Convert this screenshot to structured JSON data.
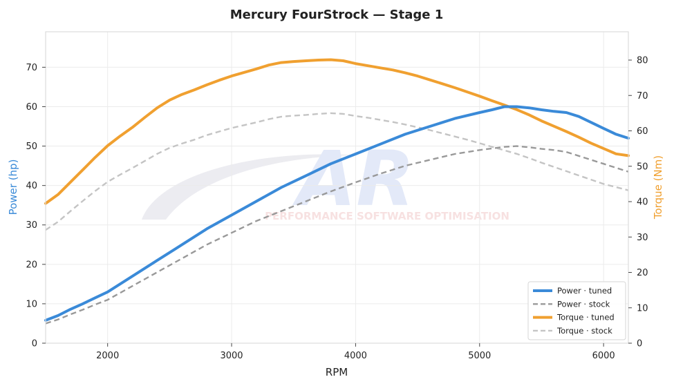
{
  "chart_data": {
    "type": "line",
    "title": "Mercury FourStrock — Stage 1",
    "xlabel": "RPM",
    "ylabel_left": "Power (hp)",
    "ylabel_right": "Torque (Nm)",
    "xlim": [
      1500,
      6200
    ],
    "ylim_left": [
      0,
      79
    ],
    "ylim_right": [
      0,
      88
    ],
    "x_ticks": [
      2000,
      3000,
      4000,
      5000,
      6000
    ],
    "y_ticks_left": [
      0,
      10,
      20,
      30,
      40,
      50,
      60,
      70
    ],
    "y_ticks_right": [
      0,
      10,
      20,
      30,
      40,
      50,
      60,
      70,
      80
    ],
    "grid": true,
    "legend_position": "bottom-right",
    "colors": {
      "power_tuned": "#3a8ad8",
      "power_stock": "#999999",
      "torque_tuned": "#f0a030",
      "torque_stock": "#c4c4c4",
      "left_axis_label": "#3a8ad8",
      "right_axis_label": "#f0a030"
    },
    "series": [
      {
        "name": "Power · tuned",
        "axis": "left",
        "style": "solid",
        "x": [
          1500,
          1600,
          1700,
          1800,
          1900,
          2000,
          2200,
          2400,
          2600,
          2800,
          3000,
          3200,
          3400,
          3600,
          3800,
          4000,
          4200,
          4400,
          4600,
          4800,
          5000,
          5100,
          5200,
          5300,
          5400,
          5500,
          5600,
          5700,
          5800,
          5900,
          6000,
          6100,
          6200
        ],
        "values": [
          5.8,
          7.0,
          8.6,
          10.0,
          11.5,
          13.0,
          17.0,
          21.0,
          25.0,
          29.0,
          32.5,
          36.0,
          39.5,
          42.5,
          45.5,
          48.0,
          50.5,
          53.0,
          55.0,
          57.0,
          58.5,
          59.2,
          60.0,
          60.0,
          59.7,
          59.2,
          58.8,
          58.5,
          57.5,
          56.0,
          54.5,
          53.0,
          52.0
        ]
      },
      {
        "name": "Power · stock",
        "axis": "left",
        "style": "dashed",
        "x": [
          1500,
          1600,
          1700,
          1800,
          1900,
          2000,
          2200,
          2400,
          2600,
          2800,
          3000,
          3200,
          3400,
          3600,
          3800,
          4000,
          4200,
          4400,
          4600,
          4800,
          5000,
          5200,
          5300,
          5400,
          5500,
          5600,
          5700,
          5800,
          5900,
          6000,
          6100,
          6200
        ],
        "values": [
          5.0,
          6.0,
          7.3,
          8.5,
          9.8,
          11.0,
          14.5,
          18.0,
          21.5,
          25.0,
          28.0,
          31.0,
          33.5,
          36.0,
          38.5,
          40.8,
          43.0,
          45.0,
          46.5,
          48.0,
          49.0,
          49.8,
          50.0,
          49.7,
          49.3,
          49.0,
          48.5,
          47.5,
          46.5,
          45.5,
          44.5,
          43.5
        ]
      },
      {
        "name": "Torque · tuned",
        "axis": "right",
        "style": "solid",
        "x": [
          1500,
          1600,
          1700,
          1800,
          1900,
          2000,
          2100,
          2200,
          2300,
          2400,
          2500,
          2600,
          2700,
          2800,
          2900,
          3000,
          3100,
          3200,
          3300,
          3400,
          3500,
          3600,
          3700,
          3800,
          3900,
          4000,
          4100,
          4200,
          4300,
          4400,
          4500,
          4600,
          4700,
          4800,
          4900,
          5000,
          5100,
          5200,
          5300,
          5400,
          5500,
          5600,
          5700,
          5800,
          5900,
          6000,
          6100,
          6200
        ],
        "values": [
          39.5,
          42.0,
          45.5,
          49.0,
          52.5,
          55.8,
          58.5,
          61.0,
          63.8,
          66.5,
          68.7,
          70.3,
          71.6,
          73.0,
          74.3,
          75.5,
          76.5,
          77.5,
          78.6,
          79.3,
          79.6,
          79.8,
          80.0,
          80.1,
          79.8,
          79.0,
          78.4,
          77.8,
          77.2,
          76.4,
          75.5,
          74.4,
          73.3,
          72.2,
          71.0,
          69.8,
          68.5,
          67.3,
          66.0,
          64.5,
          62.8,
          61.3,
          59.8,
          58.2,
          56.5,
          55.0,
          53.5,
          53.0
        ]
      },
      {
        "name": "Torque · stock",
        "axis": "right",
        "style": "dashed",
        "x": [
          1500,
          1600,
          1700,
          1800,
          1900,
          2000,
          2100,
          2200,
          2300,
          2400,
          2500,
          2600,
          2700,
          2800,
          2900,
          3000,
          3100,
          3200,
          3300,
          3400,
          3500,
          3600,
          3700,
          3800,
          3900,
          4000,
          4100,
          4200,
          4300,
          4400,
          4500,
          4600,
          4700,
          4800,
          4900,
          5000,
          5100,
          5200,
          5300,
          5400,
          5500,
          5600,
          5700,
          5800,
          5900,
          6000,
          6100,
          6200
        ],
        "values": [
          32.0,
          34.3,
          37.3,
          40.2,
          43.0,
          45.6,
          47.6,
          49.5,
          51.5,
          53.5,
          55.2,
          56.4,
          57.5,
          58.8,
          59.8,
          60.8,
          61.6,
          62.4,
          63.3,
          64.0,
          64.3,
          64.5,
          64.8,
          65.0,
          64.8,
          64.2,
          63.7,
          63.1,
          62.5,
          61.8,
          61.0,
          60.2,
          59.3,
          58.4,
          57.5,
          56.5,
          55.5,
          54.5,
          53.5,
          52.3,
          51.0,
          49.8,
          48.6,
          47.4,
          46.2,
          45.0,
          44.1,
          43.2
        ]
      }
    ]
  },
  "watermark": {
    "logo_text": "AR",
    "tagline": "PERFORMANCE SOFTWARE OPTIMISATION"
  }
}
